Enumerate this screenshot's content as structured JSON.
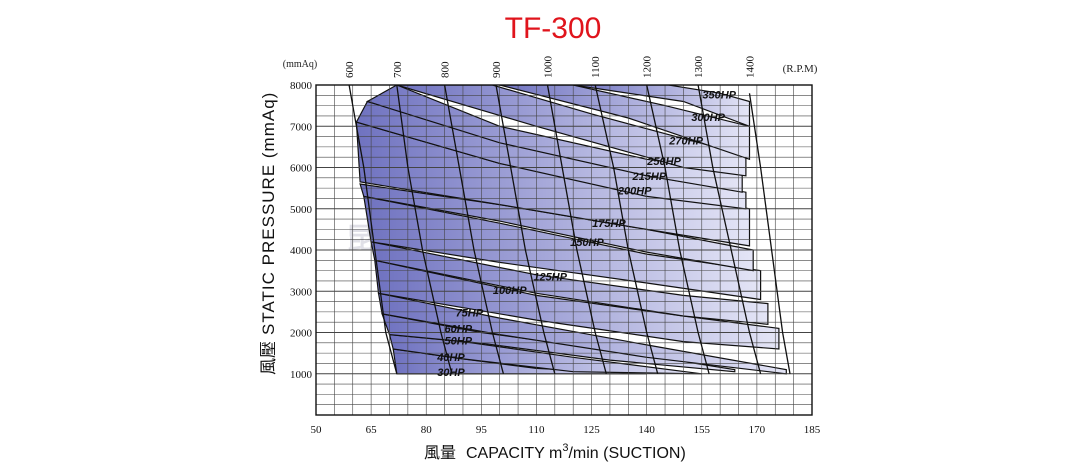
{
  "chart_data": {
    "type": "line",
    "title": "TF-300",
    "ylabel_cn": "風壓",
    "ylabel": "STATIC PRESSURE (mmAq)",
    "xlabel_cn": "風量",
    "xlabel_pre": "CAPACITY m",
    "xlabel_sup": "3",
    "xlabel_post": "/min (SUCTION)",
    "y_unit_label": "(mmAq)",
    "rpm_unit_label": "(R.P.M)",
    "watermark": "昆山大风机有限公司",
    "xlim": [
      50,
      185
    ],
    "ylim": [
      0,
      8000
    ],
    "x_ticks": [
      50,
      65,
      80,
      95,
      110,
      125,
      140,
      155,
      170,
      185
    ],
    "y_ticks": [
      1000,
      2000,
      3000,
      4000,
      5000,
      6000,
      7000,
      8000
    ],
    "colors": {
      "band_dark": "#6f72c0",
      "band_light": "#e4e5f6",
      "title": "#e0141c",
      "grid": "#444444"
    },
    "rpm_curves": [
      {
        "label": "600",
        "points": [
          [
            59,
            8000
          ],
          [
            63,
            6000
          ],
          [
            66,
            4000
          ],
          [
            69,
            2000
          ],
          [
            72,
            1000
          ]
        ]
      },
      {
        "label": "700",
        "points": [
          [
            72,
            8000
          ],
          [
            75,
            6000
          ],
          [
            79,
            4000
          ],
          [
            84,
            2000
          ],
          [
            87,
            1000
          ]
        ]
      },
      {
        "label": "800",
        "points": [
          [
            85,
            8000
          ],
          [
            89,
            6000
          ],
          [
            93,
            4000
          ],
          [
            98,
            2000
          ],
          [
            101,
            1000
          ]
        ]
      },
      {
        "label": "900",
        "points": [
          [
            99,
            8000
          ],
          [
            103,
            6000
          ],
          [
            107,
            4000
          ],
          [
            112,
            2000
          ],
          [
            115,
            1000
          ]
        ]
      },
      {
        "label": "1000",
        "points": [
          [
            113,
            8000
          ],
          [
            117,
            6000
          ],
          [
            121,
            4000
          ],
          [
            126,
            2000
          ],
          [
            129,
            1000
          ]
        ]
      },
      {
        "label": "1100",
        "points": [
          [
            126,
            8000
          ],
          [
            131,
            6000
          ],
          [
            135,
            4000
          ],
          [
            140,
            2000
          ],
          [
            143,
            1000
          ]
        ]
      },
      {
        "label": "1200",
        "points": [
          [
            140,
            8000
          ],
          [
            145,
            6000
          ],
          [
            149,
            4000
          ],
          [
            154,
            2000
          ],
          [
            157,
            1000
          ]
        ]
      },
      {
        "label": "1300",
        "points": [
          [
            154,
            8000
          ],
          [
            158,
            6000
          ],
          [
            163,
            4000
          ],
          [
            168,
            2000
          ],
          [
            171,
            1000
          ]
        ]
      },
      {
        "label": "1400",
        "points": [
          [
            168,
            7800
          ],
          [
            171,
            6000
          ],
          [
            174,
            4000
          ],
          [
            177,
            2000
          ],
          [
            179,
            1000
          ]
        ]
      }
    ],
    "hp_bands": [
      {
        "label": "30HP",
        "upper": [
          [
            72,
            1000
          ],
          [
            90,
            1000
          ],
          [
            100,
            1000
          ]
        ],
        "lower": [
          [
            72,
            1000
          ],
          [
            90,
            1000
          ],
          [
            100,
            1000
          ]
        ]
      },
      {
        "label": "40HP",
        "upper": [
          [
            71,
            1600
          ],
          [
            90,
            1360
          ],
          [
            110,
            1130
          ],
          [
            140,
            1000
          ]
        ],
        "lower": [
          [
            72,
            1000
          ],
          [
            90,
            1000
          ],
          [
            110,
            1000
          ],
          [
            140,
            1000
          ]
        ]
      },
      {
        "label": "50HP",
        "upper": [
          [
            70,
            1950
          ],
          [
            90,
            1780
          ],
          [
            120,
            1400
          ],
          [
            155,
            1000
          ]
        ],
        "lower": [
          [
            71,
            1600
          ],
          [
            90,
            1360
          ],
          [
            120,
            1050
          ],
          [
            155,
            1000
          ]
        ]
      },
      {
        "label": "60HP",
        "upper": [
          [
            68,
            2450
          ],
          [
            95,
            2000
          ],
          [
            130,
            1580
          ],
          [
            164,
            1100
          ]
        ],
        "lower": [
          [
            70,
            1950
          ],
          [
            95,
            1740
          ],
          [
            130,
            1330
          ],
          [
            164,
            1050
          ]
        ]
      },
      {
        "label": "75HP",
        "upper": [
          [
            67,
            2950
          ],
          [
            100,
            2350
          ],
          [
            140,
            1700
          ],
          [
            178,
            1100
          ]
        ],
        "lower": [
          [
            68,
            2450
          ],
          [
            100,
            1950
          ],
          [
            140,
            1400
          ],
          [
            178,
            1000
          ]
        ]
      },
      {
        "label": "100HP",
        "upper": [
          [
            66,
            3750
          ],
          [
            110,
            2900
          ],
          [
            150,
            2400
          ],
          [
            176,
            2100
          ]
        ],
        "lower": [
          [
            67,
            2950
          ],
          [
            110,
            2300
          ],
          [
            150,
            1780
          ],
          [
            176,
            1600
          ]
        ]
      },
      {
        "label": "125HP",
        "upper": [
          [
            65,
            4200
          ],
          [
            110,
            3400
          ],
          [
            150,
            2900
          ],
          [
            173,
            2700
          ]
        ],
        "lower": [
          [
            66,
            3750
          ],
          [
            110,
            2950
          ],
          [
            150,
            2400
          ],
          [
            173,
            2200
          ]
        ]
      },
      {
        "label": "150HP",
        "upper": [
          [
            63,
            5300
          ],
          [
            100,
            4650
          ],
          [
            140,
            3900
          ],
          [
            171,
            3500
          ]
        ],
        "lower": [
          [
            65,
            4200
          ],
          [
            100,
            3700
          ],
          [
            140,
            3200
          ],
          [
            171,
            2800
          ]
        ]
      },
      {
        "label": "175HP",
        "upper": [
          [
            62,
            5600
          ],
          [
            100,
            5100
          ],
          [
            140,
            4500
          ],
          [
            169,
            4000
          ]
        ],
        "lower": [
          [
            63,
            5300
          ],
          [
            100,
            4700
          ],
          [
            140,
            3950
          ],
          [
            169,
            3500
          ]
        ]
      },
      {
        "label": "200HP",
        "upper": [
          [
            61,
            7100
          ],
          [
            100,
            6100
          ],
          [
            140,
            5400
          ],
          [
            168,
            5000
          ]
        ],
        "lower": [
          [
            62,
            5650
          ],
          [
            100,
            5100
          ],
          [
            140,
            4500
          ],
          [
            168,
            4100
          ]
        ]
      },
      {
        "label": "215HP",
        "upper": [
          [
            64,
            7600
          ],
          [
            100,
            6700
          ],
          [
            140,
            5800
          ],
          [
            167,
            5400
          ]
        ],
        "lower": [
          [
            61,
            7100
          ],
          [
            100,
            6100
          ],
          [
            140,
            5300
          ],
          [
            167,
            5000
          ]
        ]
      },
      {
        "label": "250HP",
        "upper": [
          [
            72,
            8000
          ],
          [
            100,
            7000
          ],
          [
            140,
            6200
          ],
          [
            166,
            5900
          ]
        ],
        "lower": [
          [
            64,
            7600
          ],
          [
            100,
            6600
          ],
          [
            140,
            5800
          ],
          [
            166,
            5400
          ]
        ]
      },
      {
        "label": "270HP",
        "upper": [
          [
            98,
            8000
          ],
          [
            125,
            7300
          ],
          [
            150,
            6700
          ],
          [
            167,
            6300
          ]
        ],
        "lower": [
          [
            72,
            8000
          ],
          [
            110,
            7000
          ],
          [
            150,
            6000
          ],
          [
            167,
            5800
          ]
        ]
      },
      {
        "label": "300HP",
        "upper": [
          [
            120,
            8000
          ],
          [
            145,
            7500
          ],
          [
            168,
            7000
          ]
        ],
        "lower": [
          [
            100,
            8000
          ],
          [
            135,
            7200
          ],
          [
            168,
            6200
          ]
        ]
      },
      {
        "label": "350HP",
        "upper": [
          [
            146,
            8000
          ],
          [
            160,
            7800
          ],
          [
            168,
            7600
          ]
        ],
        "lower": [
          [
            120,
            8000
          ],
          [
            150,
            7600
          ],
          [
            168,
            7000
          ]
        ]
      }
    ]
  }
}
